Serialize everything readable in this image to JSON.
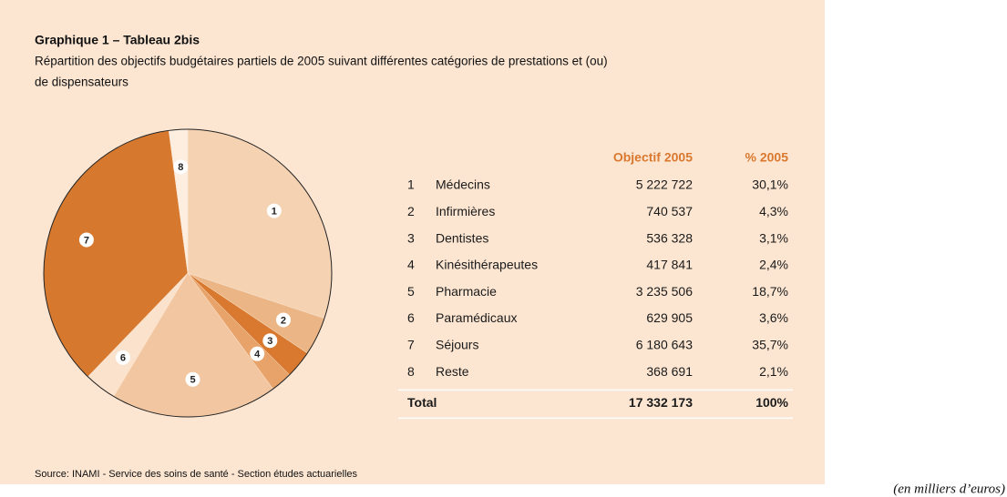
{
  "title": "Graphique 1 – Tableau 2bis",
  "subtitle": [
    "Répartition des objectifs budgétaires partiels de 2005 suivant différentes catégories de prestations et (ou)",
    "de dispensateurs"
  ],
  "chart_data": {
    "type": "pie",
    "categories": [
      "1",
      "2",
      "3",
      "4",
      "5",
      "6",
      "7",
      "8"
    ],
    "values": [
      30.1,
      4.3,
      3.1,
      2.4,
      18.7,
      3.6,
      35.7,
      2.1
    ],
    "colors": [
      "#f5d2b2",
      "#ebb586",
      "#d8792f",
      "#e8a36a",
      "#f1c6a0",
      "#fbe2cc",
      "#d6792f",
      "#fdeee0"
    ]
  },
  "table": {
    "header": [
      "Objectif 2005",
      "% 2005"
    ],
    "rows": [
      [
        "1",
        "Médecins",
        "5 222 722",
        "30,1%"
      ],
      [
        "2",
        "Infirmières",
        "740 537",
        "4,3%"
      ],
      [
        "3",
        "Dentistes",
        "536 328",
        "3,1%"
      ],
      [
        "4",
        "Kinésithérapeutes",
        "417 841",
        "2,4%"
      ],
      [
        "5",
        "Pharmacie",
        "3 235 506",
        "18,7%"
      ],
      [
        "6",
        "Paramédicaux",
        "629 905",
        "3,6%"
      ],
      [
        "7",
        "Séjours",
        "6 180 643",
        "35,7%"
      ],
      [
        "8",
        "Reste",
        "368 691",
        "2,1%"
      ]
    ],
    "total": [
      "Total",
      "17 332 173",
      "100%"
    ]
  },
  "source": "Source: INAMI - Service des soins de santé - Section études actuarielles",
  "note": "(en milliers d’euros)"
}
